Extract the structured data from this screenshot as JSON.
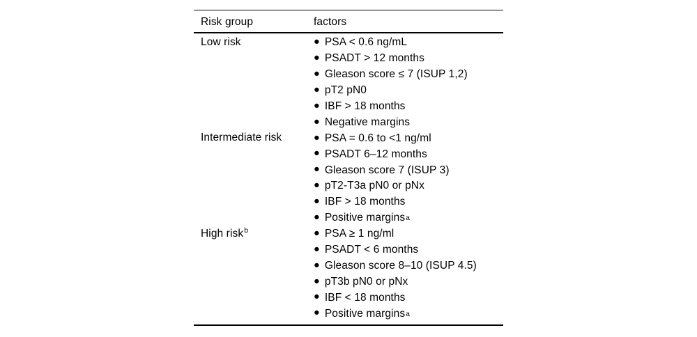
{
  "colors": {
    "background": "#ffffff",
    "text": "#000000",
    "rule": "#000000"
  },
  "icons": {
    "bullet_glyph": "●"
  },
  "table": {
    "header": {
      "col1": "Risk group",
      "col2": "factors"
    },
    "groups": [
      {
        "label": "Low risk",
        "label_sup": "",
        "factors": [
          {
            "text": "PSA < 0.6 ng/mL",
            "sup": ""
          },
          {
            "text": "PSADT > 12 months",
            "sup": ""
          },
          {
            "text": "Gleason score ≤ 7 (ISUP 1,2)",
            "sup": ""
          },
          {
            "text": "pT2 pN0",
            "sup": ""
          },
          {
            "text": "IBF > 18 months",
            "sup": ""
          },
          {
            "text": "Negative margins",
            "sup": ""
          }
        ]
      },
      {
        "label": "Intermediate risk",
        "label_sup": "",
        "factors": [
          {
            "text": "PSA = 0.6 to <1 ng/ml",
            "sup": ""
          },
          {
            "text": "PSADT 6–12 months",
            "sup": ""
          },
          {
            "text": "Gleason score 7 (ISUP 3)",
            "sup": ""
          },
          {
            "text": "pT2-T3a pN0 or pNx",
            "sup": ""
          },
          {
            "text": "IBF > 18 months",
            "sup": ""
          },
          {
            "text": "Positive margins",
            "sup": "a"
          }
        ]
      },
      {
        "label": "High risk",
        "label_sup": "b",
        "factors": [
          {
            "text": "PSA ≥ 1 ng/ml",
            "sup": ""
          },
          {
            "text": "PSADT < 6 months",
            "sup": ""
          },
          {
            "text": "Gleason score 8–10 (ISUP 4.5)",
            "sup": ""
          },
          {
            "text": "pT3b pN0 or pNx",
            "sup": ""
          },
          {
            "text": "IBF < 18 months",
            "sup": ""
          },
          {
            "text": "Positive margins",
            "sup": "a"
          }
        ]
      }
    ]
  }
}
